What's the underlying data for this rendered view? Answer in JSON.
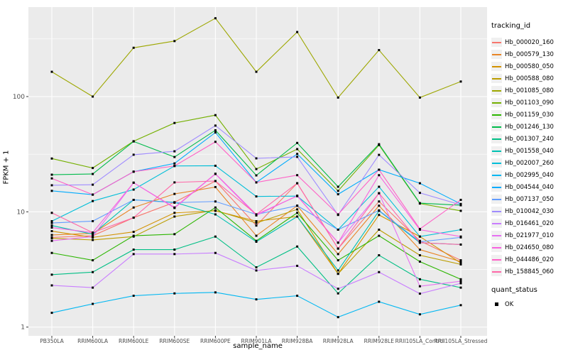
{
  "chart": {
    "type": "line",
    "title": "",
    "xlabel": "sample_name",
    "ylabel": "FPKM + 1",
    "legend_title": "tracking_id",
    "quant_legend": {
      "title": "quant_status",
      "items": [
        {
          "label": "OK",
          "marker": "square",
          "color": "#000000"
        }
      ]
    },
    "panel_bg": "#ebebeb",
    "grid_color": "#ffffff",
    "tick_label_color": "#4d4d4d",
    "point_color": "#000000",
    "y_scale": "log10",
    "ylim": [
      0.84,
      600
    ],
    "y_major_ticks": [
      1,
      10,
      100
    ],
    "y_minor_ticks": [
      3.162,
      31.62,
      316.2
    ],
    "grid": true,
    "legend_position": "right"
  },
  "chart_data": {
    "type": "line",
    "x_axis": "sample_name",
    "y_axis": "FPKM + 1",
    "categories": [
      "PB350LA",
      "RRIM600LA",
      "RRIM600LE",
      "RRIM600SE",
      "RRIM600PE",
      "RRIM901LA",
      "RRIM928BA",
      "RRIM928LA",
      "RRIM928LE",
      "RRII105LA_Control",
      "RRII105LA_Stressed"
    ],
    "series": [
      {
        "name": "Hb_000020_160",
        "color": "#F8766D",
        "quant_status": "OK",
        "values": [
          6.0,
          6.2,
          8.9,
          12.1,
          18.5,
          7.6,
          17.7,
          4.8,
          12.3,
          5.6,
          3.8
        ]
      },
      {
        "name": "Hb_000579_130",
        "color": "#E88526",
        "quant_status": "OK",
        "values": [
          6.3,
          6.5,
          10.9,
          14.3,
          16.4,
          6.2,
          11.3,
          4.3,
          11.3,
          4.7,
          3.7
        ]
      },
      {
        "name": "Hb_000580_050",
        "color": "#D39200",
        "quant_status": "OK",
        "values": [
          6.8,
          6.0,
          6.7,
          9.8,
          10.2,
          8.3,
          9.1,
          2.9,
          9.4,
          6.1,
          3.6
        ]
      },
      {
        "name": "Hb_000588_080",
        "color": "#BB9D00",
        "quant_status": "OK",
        "values": [
          5.9,
          5.7,
          6.1,
          9.1,
          10.3,
          8.0,
          10.5,
          2.9,
          7.0,
          4.2,
          3.5
        ]
      },
      {
        "name": "Hb_001085_080",
        "color": "#9DA700",
        "quant_status": "OK",
        "values": [
          164,
          100,
          265,
          303,
          478,
          164,
          363,
          98,
          253,
          98,
          135
        ]
      },
      {
        "name": "Hb_001103_090",
        "color": "#74B000",
        "quant_status": "OK",
        "values": [
          29,
          24,
          41,
          59,
          69,
          23.5,
          35,
          15.2,
          38,
          11.8,
          10.2
        ]
      },
      {
        "name": "Hb_001159_030",
        "color": "#2CB600",
        "quant_status": "OK",
        "values": [
          4.4,
          3.8,
          6.2,
          6.4,
          10.9,
          5.6,
          9.8,
          3.8,
          6.2,
          3.7,
          2.6
        ]
      },
      {
        "name": "Hb_001246_130",
        "color": "#00BB4B",
        "quant_status": "OK",
        "values": [
          21,
          21.3,
          40.8,
          29.9,
          51,
          20.7,
          39.6,
          16.5,
          38.6,
          11.9,
          11.4
        ]
      },
      {
        "name": "Hb_001307_240",
        "color": "#00BF85",
        "quant_status": "OK",
        "values": [
          2.85,
          3.0,
          4.7,
          4.7,
          6.1,
          3.3,
          5.0,
          1.96,
          4.2,
          2.6,
          2.2
        ]
      },
      {
        "name": "Hb_001558_040",
        "color": "#00C1B2",
        "quant_status": "OK",
        "values": [
          7.6,
          6.4,
          12.7,
          12.1,
          9.5,
          5.5,
          9.1,
          3.1,
          10.2,
          5.4,
          5.2
        ]
      },
      {
        "name": "Hb_002007_260",
        "color": "#00BED8",
        "quant_status": "OK",
        "values": [
          8.3,
          12.4,
          15.6,
          25,
          25.1,
          13.6,
          13.7,
          7.0,
          16.5,
          6.1,
          7.0
        ]
      },
      {
        "name": "Hb_002995_040",
        "color": "#00B7F2",
        "quant_status": "OK",
        "values": [
          1.33,
          1.59,
          1.87,
          1.96,
          2.0,
          1.74,
          1.87,
          1.22,
          1.66,
          1.29,
          1.55
        ]
      },
      {
        "name": "Hb_004544_040",
        "color": "#00ABFD",
        "quant_status": "OK",
        "values": [
          15.2,
          14.1,
          22.3,
          26.3,
          48.8,
          18.0,
          31.8,
          14.2,
          23.2,
          17.7,
          11.7
        ]
      },
      {
        "name": "Hb_007137_050",
        "color": "#619CFF",
        "quant_status": "OK",
        "values": [
          8.0,
          8.3,
          12.7,
          12.0,
          12.3,
          9.5,
          11.3,
          7.0,
          10.3,
          5.5,
          6.0
        ]
      },
      {
        "name": "Hb_010042_030",
        "color": "#A08CFF",
        "quant_status": "OK",
        "values": [
          17.0,
          17.2,
          31.3,
          33.5,
          56,
          29.1,
          30,
          9.4,
          31.2,
          14.6,
          11.5
        ]
      },
      {
        "name": "Hb_016461_020",
        "color": "#C97DFF",
        "quant_status": "OK",
        "values": [
          2.3,
          2.2,
          4.3,
          4.3,
          4.4,
          3.1,
          3.4,
          2.15,
          3.0,
          1.95,
          2.4
        ]
      },
      {
        "name": "Hb_021977_010",
        "color": "#E670F2",
        "quant_status": "OK",
        "values": [
          5.6,
          6.1,
          17.9,
          10.8,
          21.3,
          9.3,
          13.8,
          5.4,
          14.5,
          2.26,
          2.5
        ]
      },
      {
        "name": "Hb_024650_080",
        "color": "#F763DF",
        "quant_status": "OK",
        "values": [
          7.3,
          6.6,
          17.9,
          10.9,
          21.4,
          9.5,
          13.7,
          5.4,
          20.8,
          7.0,
          6.1
        ]
      },
      {
        "name": "Hb_044486_020",
        "color": "#FF61C7",
        "quant_status": "OK",
        "values": [
          19.5,
          14.1,
          22.3,
          25,
          40.5,
          18.0,
          20.8,
          9.5,
          23.2,
          7.1,
          12.7
        ]
      },
      {
        "name": "Hb_158845_060",
        "color": "#FF68A8",
        "quant_status": "OK",
        "values": [
          9.8,
          6.6,
          8.9,
          18,
          18.5,
          9.5,
          17.7,
          4.8,
          14.5,
          5.4,
          5.2
        ]
      }
    ]
  }
}
